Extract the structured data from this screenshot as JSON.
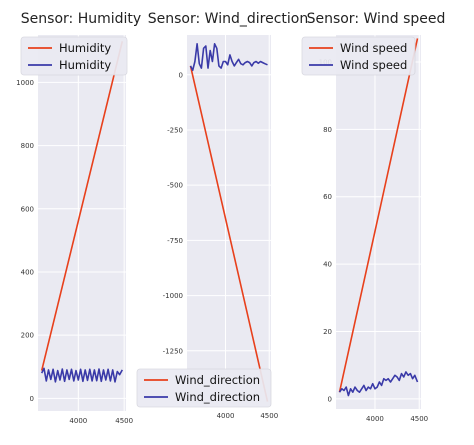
{
  "colors": {
    "background": "#eaeaf2",
    "grid": "#ffffff",
    "line1": "#e8401c",
    "line2": "#3a3aa8"
  },
  "chart_data": [
    {
      "type": "line",
      "title": "Sensor:  Humidity",
      "xlim": [
        3560,
        4520
      ],
      "ylim": [
        -40,
        1150
      ],
      "xticks": [
        4000,
        4500
      ],
      "yticks": [
        0,
        200,
        400,
        600,
        800,
        1000
      ],
      "legend_position": "top",
      "series": [
        {
          "name": "Humidity",
          "color": "#e8401c",
          "x": [
            3600,
            4480
          ],
          "y": [
            88,
            1130
          ]
        },
        {
          "name": "Humidity",
          "color": "#3a3aa8",
          "x": [
            3600,
            3625,
            3650,
            3675,
            3700,
            3725,
            3750,
            3775,
            3800,
            3825,
            3850,
            3875,
            3900,
            3925,
            3950,
            3975,
            4000,
            4025,
            4050,
            4075,
            4100,
            4125,
            4150,
            4175,
            4200,
            4225,
            4250,
            4275,
            4300,
            4325,
            4350,
            4375,
            4400,
            4425,
            4450,
            4480
          ],
          "y": [
            80,
            95,
            55,
            90,
            60,
            92,
            52,
            88,
            58,
            93,
            54,
            90,
            60,
            92,
            55,
            88,
            58,
            92,
            54,
            90,
            57,
            92,
            55,
            90,
            56,
            93,
            54,
            90,
            58,
            92,
            55,
            90,
            52,
            85,
            75,
            90
          ]
        }
      ]
    },
    {
      "type": "line",
      "title": "Sensor: Wind_direction",
      "xlim": [
        3560,
        4520
      ],
      "ylim": [
        -1500,
        180
      ],
      "xticks": [
        4000,
        4500
      ],
      "yticks": [
        -1250,
        -1000,
        -750,
        -500,
        -250,
        0
      ],
      "legend_position": "bottom",
      "series": [
        {
          "name": "Wind_direction",
          "color": "#e8401c",
          "x": [
            3600,
            4480
          ],
          "y": [
            40,
            -1480
          ]
        },
        {
          "name": "Wind_direction",
          "color": "#3a3aa8",
          "x": [
            3600,
            3625,
            3650,
            3675,
            3700,
            3725,
            3750,
            3775,
            3800,
            3825,
            3850,
            3875,
            3900,
            3925,
            3950,
            3975,
            4000,
            4025,
            4050,
            4075,
            4100,
            4125,
            4150,
            4175,
            4200,
            4225,
            4250,
            4275,
            4300,
            4325,
            4350,
            4375,
            4400,
            4425,
            4450,
            4480
          ],
          "y": [
            40,
            20,
            60,
            140,
            50,
            30,
            120,
            130,
            30,
            110,
            60,
            140,
            120,
            40,
            30,
            60,
            60,
            45,
            90,
            60,
            40,
            55,
            70,
            50,
            45,
            55,
            60,
            55,
            40,
            55,
            60,
            52,
            60,
            55,
            50,
            45
          ]
        }
      ]
    },
    {
      "type": "line",
      "title": "Sensor: Wind speed",
      "xlim": [
        3560,
        4520
      ],
      "ylim": [
        -3,
        108
      ],
      "xticks": [
        4000,
        4500
      ],
      "yticks": [
        0,
        20,
        40,
        60,
        80,
        100
      ],
      "legend_position": "top",
      "series": [
        {
          "name": "Wind speed",
          "color": "#e8401c",
          "x": [
            3600,
            4480
          ],
          "y": [
            2,
            107
          ]
        },
        {
          "name": "Wind speed",
          "color": "#3a3aa8",
          "x": [
            3600,
            3625,
            3650,
            3675,
            3700,
            3725,
            3750,
            3775,
            3800,
            3825,
            3850,
            3875,
            3900,
            3925,
            3950,
            3975,
            4000,
            4025,
            4050,
            4075,
            4100,
            4125,
            4150,
            4175,
            4200,
            4225,
            4250,
            4275,
            4300,
            4325,
            4350,
            4375,
            4400,
            4425,
            4450,
            4480
          ],
          "y": [
            2,
            3,
            2.5,
            3.5,
            1,
            3,
            2,
            3.5,
            2.5,
            2,
            3,
            4,
            2.5,
            3.5,
            3,
            4.5,
            3,
            3.5,
            5,
            4,
            6,
            5.5,
            6,
            5,
            6,
            7,
            6.5,
            5.5,
            7.5,
            6.5,
            8,
            7,
            7.5,
            6,
            7,
            5
          ]
        }
      ]
    }
  ]
}
